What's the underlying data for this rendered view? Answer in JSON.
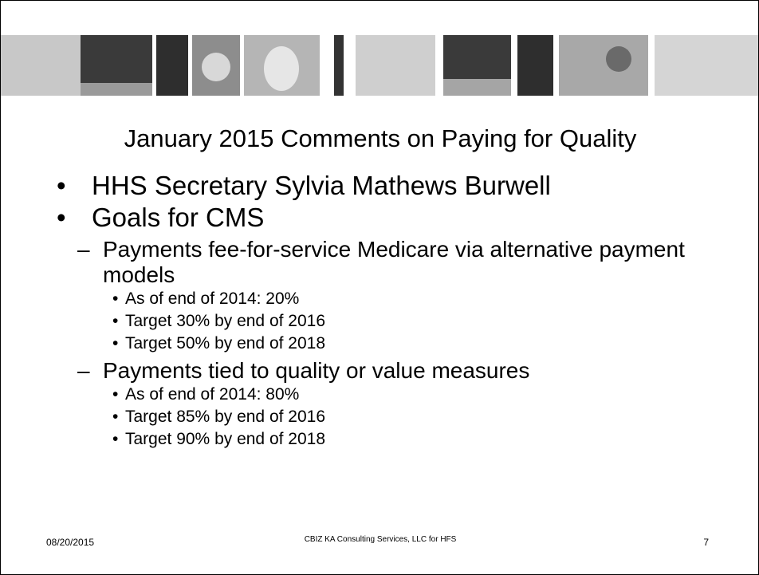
{
  "title": "January 2015 Comments on Paying for Quality",
  "bullets": [
    {
      "text": "HHS Secretary Sylvia Mathews Burwell"
    },
    {
      "text": "Goals for CMS",
      "items": [
        {
          "text": "Payments fee-for-service Medicare via alternative payment models",
          "items": [
            "As of end of 2014: 20%",
            "Target 30% by end of 2016",
            "Target 50% by end of 2018"
          ]
        },
        {
          "text": "Payments tied to quality or value measures",
          "items": [
            "As of end of 2014: 80%",
            "Target 85% by end of 2016",
            "Target 90% by end of 2018"
          ]
        }
      ]
    }
  ],
  "footer": {
    "date": "08/20/2015",
    "center": "CBIZ KA Consulting Services, LLC for HFS",
    "page": "7"
  }
}
